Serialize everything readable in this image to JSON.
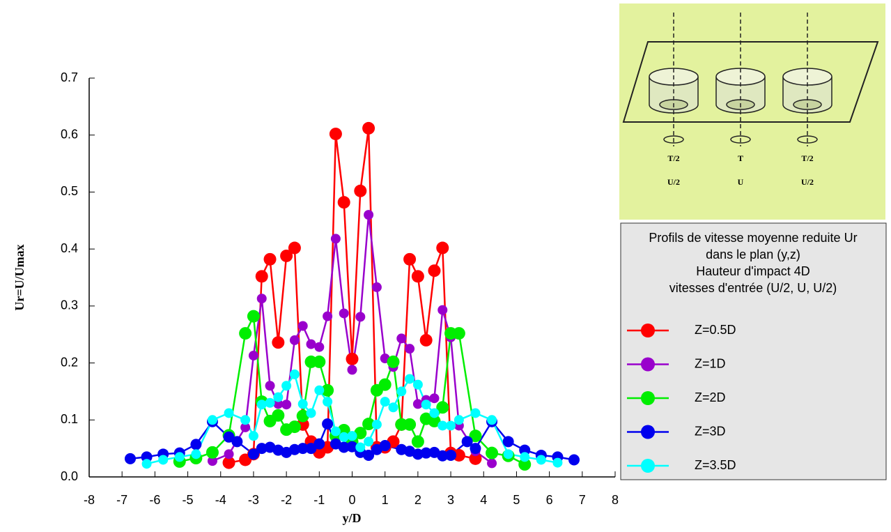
{
  "chart_data": {
    "type": "line",
    "x_label": "y/D",
    "y_label": "Ur=U/Umax",
    "xlim": [
      -8,
      8
    ],
    "ylim": [
      0,
      0.7
    ],
    "xticks": [
      -8,
      -7,
      -6,
      -5,
      -4,
      -3,
      -2,
      -1,
      0,
      1,
      2,
      3,
      4,
      5,
      6,
      7,
      8
    ],
    "yticks": [
      {
        "value": 0,
        "label": "0.0"
      },
      0.1,
      0.2,
      0.3,
      0.4,
      0.5,
      0.6,
      0.7
    ],
    "legend_title": [
      "Profils de vitesse moyenne reduite Ur",
      "dans le plan (y,z)",
      "Hauteur d'impact 4D",
      "vitesses d'entrée (U/2, U, U/2)"
    ],
    "inset_labels": [
      "T/2",
      "T",
      "T/2",
      "U/2",
      "U",
      "U/2"
    ],
    "series": [
      {
        "name": "Z=0.5D",
        "color": "#ff0000",
        "x": [
          -3.75,
          -3.25,
          -3,
          -2.75,
          -2.5,
          -2.25,
          -2,
          -1.75,
          -1.5,
          -1.25,
          -1,
          -0.75,
          -0.5,
          -0.25,
          0,
          0.25,
          0.5,
          0.75,
          1,
          1.25,
          1.5,
          1.75,
          2,
          2.25,
          2.5,
          2.75,
          3,
          3.25,
          3.75
        ],
        "values": [
          0.025,
          0.03,
          0.04,
          0.352,
          0.382,
          0.236,
          0.388,
          0.402,
          0.092,
          0.062,
          0.043,
          0.052,
          0.602,
          0.482,
          0.207,
          0.502,
          0.612,
          0.052,
          0.052,
          0.062,
          0.092,
          0.382,
          0.352,
          0.24,
          0.362,
          0.402,
          0.042,
          0.038,
          0.032
        ]
      },
      {
        "name": "Z=1D",
        "color": "#9900cc",
        "x": [
          -4.25,
          -3.75,
          -3.25,
          -3,
          -2.75,
          -2.5,
          -2.25,
          -2,
          -1.75,
          -1.5,
          -1.25,
          -1,
          -0.75,
          -0.5,
          -0.25,
          0,
          0.25,
          0.5,
          0.75,
          1,
          1.25,
          1.5,
          1.75,
          2,
          2.25,
          2.5,
          2.75,
          3,
          3.25,
          3.75,
          4.25
        ],
        "values": [
          0.028,
          0.04,
          0.087,
          0.213,
          0.313,
          0.16,
          0.128,
          0.127,
          0.24,
          0.265,
          0.233,
          0.228,
          0.282,
          0.418,
          0.287,
          0.188,
          0.281,
          0.46,
          0.333,
          0.208,
          0.193,
          0.243,
          0.225,
          0.128,
          0.135,
          0.138,
          0.293,
          0.245,
          0.09,
          0.045,
          0.024
        ]
      },
      {
        "name": "Z=2D",
        "color": "#00ee00",
        "x": [
          -5.25,
          -4.75,
          -4.25,
          -3.75,
          -3.25,
          -3,
          -2.75,
          -2.5,
          -2.25,
          -2,
          -1.75,
          -1.5,
          -1.25,
          -1,
          -0.75,
          -0.5,
          -0.25,
          0,
          0.25,
          0.5,
          0.75,
          1,
          1.25,
          1.5,
          1.75,
          2,
          2.25,
          2.5,
          2.75,
          3,
          3.25,
          3.75,
          4.25,
          4.75,
          5.25
        ],
        "values": [
          0.027,
          0.033,
          0.043,
          0.073,
          0.252,
          0.282,
          0.132,
          0.098,
          0.108,
          0.083,
          0.088,
          0.107,
          0.202,
          0.202,
          0.152,
          0.072,
          0.082,
          0.062,
          0.077,
          0.093,
          0.152,
          0.162,
          0.202,
          0.092,
          0.092,
          0.062,
          0.102,
          0.098,
          0.122,
          0.252,
          0.252,
          0.072,
          0.042,
          0.037,
          0.022
        ]
      },
      {
        "name": "Z=3D",
        "color": "#0000ee",
        "x": [
          -6.75,
          -6.25,
          -5.75,
          -5.25,
          -4.75,
          -4.25,
          -3.75,
          -3.5,
          -3,
          -2.75,
          -2.5,
          -2.25,
          -2,
          -1.75,
          -1.5,
          -1.25,
          -1,
          -0.75,
          -0.5,
          -0.25,
          0,
          0.25,
          0.5,
          0.75,
          1,
          1.5,
          1.75,
          2,
          2.25,
          2.5,
          2.75,
          3,
          3.5,
          3.75,
          4.25,
          4.75,
          5.25,
          5.75,
          6.25,
          6.75
        ],
        "values": [
          0.032,
          0.035,
          0.04,
          0.042,
          0.057,
          0.097,
          0.07,
          0.062,
          0.04,
          0.05,
          0.052,
          0.047,
          0.043,
          0.048,
          0.05,
          0.05,
          0.058,
          0.093,
          0.058,
          0.052,
          0.053,
          0.043,
          0.038,
          0.048,
          0.055,
          0.048,
          0.045,
          0.04,
          0.042,
          0.043,
          0.037,
          0.038,
          0.062,
          0.05,
          0.097,
          0.062,
          0.047,
          0.038,
          0.035,
          0.03
        ]
      },
      {
        "name": "Z=3.5D",
        "color": "#00ffff",
        "x": [
          -6.25,
          -5.75,
          -5.25,
          -4.75,
          -4.25,
          -3.75,
          -3.25,
          -3,
          -2.75,
          -2.5,
          -2.25,
          -2,
          -1.75,
          -1.5,
          -1.25,
          -1,
          -0.75,
          -0.5,
          -0.25,
          0,
          0.25,
          0.5,
          0.75,
          1,
          1.25,
          1.5,
          1.75,
          2,
          2.25,
          2.5,
          2.75,
          3,
          3.25,
          3.75,
          4.25,
          4.75,
          5.25,
          5.75,
          6.25
        ],
        "values": [
          0.023,
          0.03,
          0.035,
          0.04,
          0.1,
          0.112,
          0.1,
          0.072,
          0.127,
          0.13,
          0.14,
          0.16,
          0.18,
          0.128,
          0.112,
          0.152,
          0.132,
          0.08,
          0.07,
          0.072,
          0.052,
          0.062,
          0.092,
          0.132,
          0.122,
          0.15,
          0.172,
          0.162,
          0.127,
          0.112,
          0.09,
          0.09,
          0.1,
          0.112,
          0.1,
          0.04,
          0.035,
          0.03,
          0.025
        ]
      }
    ]
  }
}
